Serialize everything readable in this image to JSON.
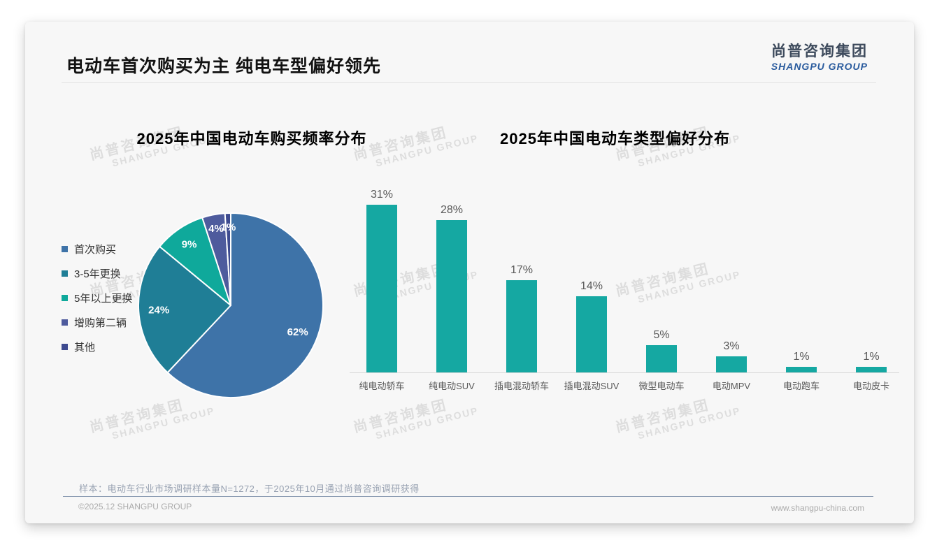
{
  "page": {
    "title": "电动车首次购买为主 纯电车型偏好领先",
    "logo": {
      "cn": "尚普咨询集团",
      "en": "SHANGPU GROUP"
    },
    "watermark": {
      "cn": "尚普咨询集团",
      "en": "SHANGPU GROUP"
    },
    "footer": {
      "note": "样本：电动车行业市场调研样本量N=1272，于2025年10月通过尚普咨询调研获得",
      "copyright": "©2025.12 SHANGPU GROUP",
      "website": "www.shangpu-china.com"
    },
    "colors": {
      "bar_teal": "#15a8a2",
      "card_bg": "#f7f7f7",
      "footer_rule": "#8495ae"
    }
  },
  "chart_data": [
    {
      "type": "pie",
      "title": "2025年中国电动车购买频率分布",
      "categories": [
        "首次购买",
        "3-5年更换",
        "5年以上更换",
        "增购第二辆",
        "其他"
      ],
      "values": [
        62,
        24,
        9,
        4,
        1
      ],
      "labels": [
        "62%",
        "24%",
        "9%",
        "4%",
        "1%"
      ],
      "colors": [
        "#3e73a8",
        "#1f7e96",
        "#0fa99b",
        "#4e5b9d",
        "#3d4a8f"
      ],
      "legend_position": "left",
      "start_angle_deg": 0,
      "direction": "clockwise"
    },
    {
      "type": "bar",
      "title": "2025年中国电动车类型偏好分布",
      "categories": [
        "纯电动轿车",
        "纯电动SUV",
        "插电混动轿车",
        "插电混动SUV",
        "微型电动车",
        "电动MPV",
        "电动跑车",
        "电动皮卡"
      ],
      "values": [
        31,
        28,
        17,
        14,
        5,
        3,
        1,
        1
      ],
      "labels": [
        "31%",
        "28%",
        "17%",
        "14%",
        "5%",
        "3%",
        "1%",
        "1%"
      ],
      "bar_color": "#15a8a2",
      "ylim": [
        0,
        34
      ],
      "grid": false,
      "legend_position": "none"
    }
  ]
}
